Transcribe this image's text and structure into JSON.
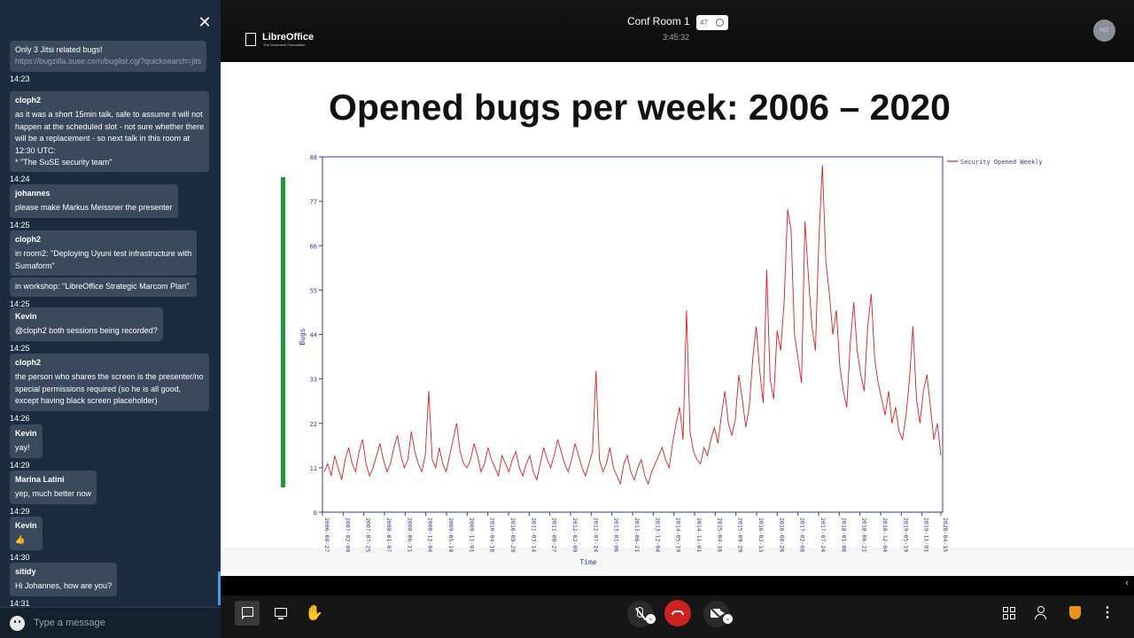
{
  "header": {
    "room_name": "Conf Room 1",
    "participants": "47",
    "timer": "3:45:32",
    "avatar_initials": "HD",
    "logo_name": "LibreOffice",
    "logo_sub": "The Document Foundation"
  },
  "chat": {
    "messages": [
      {
        "sender": "",
        "lines": [
          "Only 3 Jitsi related bugs!"
        ],
        "link": "https://bugzilla.suse.com/buglist.cgi?quicksearch=jitsi",
        "time": "14:23"
      },
      {
        "sender": "cloph2",
        "lines": [
          "as it was a short 15min talk, safe to assume it will not",
          "happen at the scheduled slot - not sure whether there",
          "will be a replacement - so next talk in this room at",
          "12:30 UTC:",
          "* \"The SuSE security team\""
        ],
        "time": "14:24"
      },
      {
        "sender": "johannes",
        "lines": [
          "please make Markus Meissner the presenter"
        ],
        "time": "14:25"
      },
      {
        "sender": "cloph2",
        "lines": [
          "in room2: \"Deploying Uyuni test infrastructure with",
          "Sumaform\""
        ],
        "extra": "in workshop: \"LibreOffice Strategic Marcom Plan\"",
        "time": "14:25"
      },
      {
        "sender": "Kevin",
        "lines": [
          "@cloph2 both sessions being recorded?"
        ],
        "time": "14:25"
      },
      {
        "sender": "cloph2",
        "lines": [
          "the person who shares the screen is the presenter/no",
          "special permissions required (so he is all good,",
          "except having black screen placeholder)"
        ],
        "time": "14:26"
      },
      {
        "sender": "Kevin",
        "lines": [
          "yay!"
        ],
        "time": "14:29"
      },
      {
        "sender": "Marina Latini",
        "lines": [
          "yep, much better now"
        ],
        "time": "14:29"
      },
      {
        "sender": "Kevin",
        "lines": [
          "👍"
        ],
        "time": "14:30"
      },
      {
        "sender": "sitidy",
        "lines": [
          "Hi Johannes, how are you?"
        ],
        "time": "14:31"
      }
    ],
    "input_placeholder": "Type a message"
  },
  "slide": {
    "title": "Opened bugs per week: 2006 – 2020"
  },
  "chart_data": {
    "type": "line",
    "title": "",
    "xlabel": "Time",
    "ylabel": "Bugs",
    "ylim": [
      0,
      88
    ],
    "yticks": [
      0,
      11,
      22,
      33,
      44,
      55,
      66,
      77,
      88
    ],
    "xticks": [
      "2006-08-27",
      "2007-02-09",
      "2007-07-25",
      "2008-01-07",
      "2008-06-21",
      "2008-12-04",
      "2009-05-19",
      "2009-11-01",
      "2010-04-16",
      "2010-09-29",
      "2011-03-14",
      "2011-08-27",
      "2012-02-09",
      "2012-07-24",
      "2013-01-06",
      "2013-06-21",
      "2013-12-04",
      "2014-05-19",
      "2014-11-01",
      "2015-04-16",
      "2015-09-29",
      "2016-03-13",
      "2016-08-26",
      "2017-02-08",
      "2017-07-24",
      "2018-01-06",
      "2018-06-21",
      "2018-12-04",
      "2019-05-19",
      "2019-11-01",
      "2020-04-15"
    ],
    "series": [
      {
        "name": "Security Opened Weekly",
        "color": "#e02020",
        "values": [
          10,
          12,
          9,
          14,
          11,
          8,
          13,
          16,
          12,
          10,
          15,
          18,
          12,
          9,
          11,
          14,
          17,
          13,
          10,
          12,
          16,
          19,
          14,
          11,
          13,
          20,
          15,
          12,
          10,
          14,
          30,
          13,
          11,
          16,
          12,
          10,
          14,
          18,
          22,
          15,
          12,
          11,
          13,
          17,
          14,
          10,
          12,
          16,
          13,
          11,
          9,
          14,
          12,
          10,
          13,
          15,
          11,
          9,
          12,
          14,
          10,
          8,
          12,
          16,
          13,
          11,
          14,
          18,
          15,
          12,
          10,
          13,
          17,
          14,
          11,
          9,
          12,
          15,
          35,
          13,
          10,
          12,
          16,
          11,
          9,
          7,
          12,
          14,
          10,
          8,
          11,
          13,
          9,
          7,
          10,
          12,
          14,
          16,
          13,
          11,
          17,
          22,
          26,
          18,
          50,
          20,
          15,
          13,
          12,
          16,
          14,
          18,
          21,
          17,
          24,
          30,
          22,
          19,
          23,
          34,
          28,
          21,
          26,
          38,
          46,
          35,
          27,
          60,
          33,
          28,
          45,
          40,
          52,
          75,
          70,
          44,
          38,
          32,
          72,
          58,
          46,
          40,
          68,
          86,
          62,
          54,
          44,
          50,
          36,
          30,
          26,
          42,
          52,
          40,
          34,
          30,
          46,
          54,
          38,
          32,
          28,
          24,
          30,
          22,
          26,
          20,
          18,
          24,
          33,
          46,
          28,
          22,
          30,
          34,
          26,
          18,
          22,
          14
        ]
      }
    ],
    "grid": false,
    "legend": "top-right"
  }
}
